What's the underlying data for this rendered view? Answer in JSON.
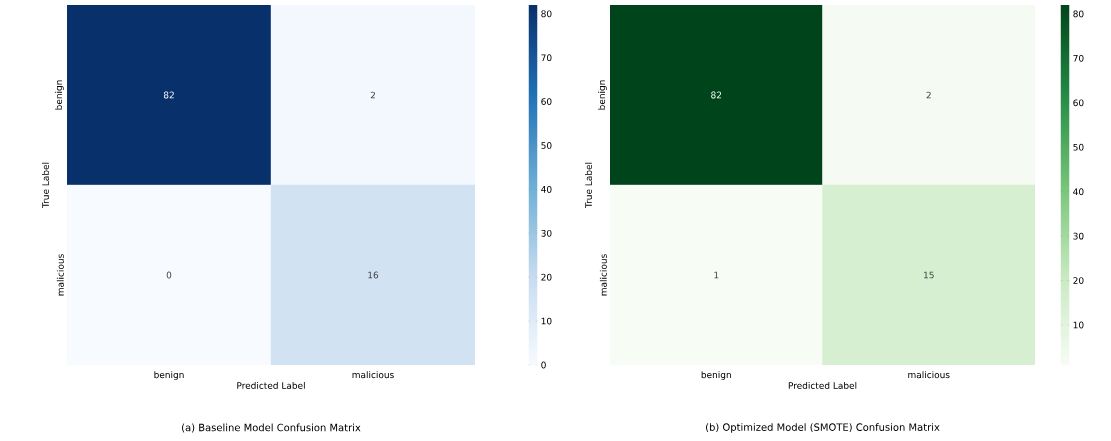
{
  "chart_data": [
    {
      "type": "heatmap",
      "title": "(a)  Baseline Model Confusion Matrix",
      "xlabel": "Predicted Label",
      "ylabel": "True Label",
      "categories": [
        "benign",
        "malicious"
      ],
      "y_categories": [
        "benign",
        "malicious"
      ],
      "cells": [
        [
          82,
          2
        ],
        [
          0,
          16
        ]
      ],
      "data_labels": true,
      "clim": [
        0,
        82
      ],
      "cticks": [
        0,
        10,
        20,
        30,
        40,
        50,
        60,
        70,
        80
      ],
      "colors": [
        "#f7fbff",
        "#c6dbef",
        "#6baed6",
        "#2171b5",
        "#08306b"
      ]
    },
    {
      "type": "heatmap",
      "title": "(b) Optimized Model (SMOTE) Confusion Matrix",
      "xlabel": "Predicted Label",
      "ylabel": "True Label",
      "categories": [
        "benign",
        "malicious"
      ],
      "y_categories": [
        "benign",
        "malicious"
      ],
      "cells": [
        [
          82,
          2
        ],
        [
          1,
          15
        ]
      ],
      "data_labels": true,
      "clim": [
        1,
        82
      ],
      "cticks": [
        10,
        20,
        30,
        40,
        50,
        60,
        70,
        80
      ],
      "colors": [
        "#f7fcf5",
        "#c7e9c0",
        "#74c476",
        "#238b45",
        "#00441b"
      ]
    }
  ]
}
